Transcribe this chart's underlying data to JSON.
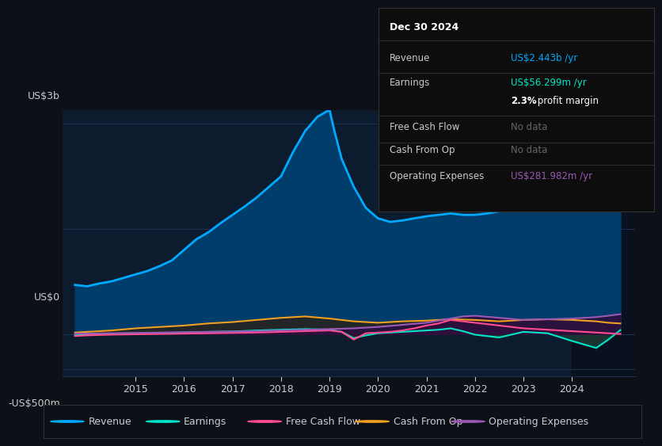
{
  "bg_color": "#0d1117",
  "plot_bg_color": "#0d1b2e",
  "grid_color": "#1e3050",
  "text_color": "#c8ccd0",
  "title_color": "#ffffff",
  "ylabel_3b": "US$3b",
  "ylabel_0": "US$0",
  "ylabel_neg500m": "-US$500m",
  "xlim": [
    2013.5,
    2025.3
  ],
  "ylim": [
    -600,
    3200
  ],
  "x_ticks": [
    2015,
    2016,
    2017,
    2018,
    2019,
    2020,
    2021,
    2022,
    2023,
    2024
  ],
  "revenue_color": "#00aaff",
  "revenue_fill": "#003d6b",
  "earnings_color": "#00e5c8",
  "cashflow_color": "#ff4d8f",
  "cashfromop_color": "#f0a020",
  "opex_color": "#9b59b6",
  "revenue_x": [
    2013.75,
    2014.0,
    2014.25,
    2014.5,
    2014.75,
    2015.0,
    2015.25,
    2015.5,
    2015.75,
    2016.0,
    2016.25,
    2016.5,
    2016.75,
    2017.0,
    2017.25,
    2017.5,
    2017.75,
    2018.0,
    2018.25,
    2018.5,
    2018.75,
    2019.0,
    2019.1,
    2019.25,
    2019.5,
    2019.75,
    2020.0,
    2020.25,
    2020.5,
    2020.75,
    2021.0,
    2021.25,
    2021.5,
    2021.75,
    2022.0,
    2022.25,
    2022.5,
    2022.75,
    2023.0,
    2023.25,
    2023.5,
    2023.75,
    2024.0,
    2024.25,
    2024.5,
    2024.75,
    2025.0
  ],
  "revenue_y": [
    700,
    680,
    720,
    750,
    800,
    850,
    900,
    970,
    1050,
    1200,
    1350,
    1450,
    1580,
    1700,
    1820,
    1950,
    2100,
    2250,
    2600,
    2900,
    3100,
    3200,
    2900,
    2500,
    2100,
    1800,
    1650,
    1600,
    1620,
    1650,
    1680,
    1700,
    1720,
    1700,
    1700,
    1720,
    1750,
    1780,
    1900,
    2100,
    2200,
    2100,
    2050,
    2150,
    2300,
    2450,
    2443
  ],
  "earnings_x": [
    2013.75,
    2014.0,
    2014.5,
    2015.0,
    2015.5,
    2016.0,
    2016.5,
    2017.0,
    2017.5,
    2018.0,
    2018.5,
    2019.0,
    2019.25,
    2019.5,
    2019.75,
    2020.0,
    2020.5,
    2021.0,
    2021.25,
    2021.5,
    2021.75,
    2022.0,
    2022.5,
    2023.0,
    2023.5,
    2024.0,
    2024.5,
    2024.75,
    2025.0
  ],
  "earnings_y": [
    -20,
    -10,
    5,
    10,
    15,
    20,
    30,
    35,
    50,
    60,
    70,
    60,
    30,
    -60,
    -20,
    10,
    30,
    50,
    60,
    80,
    40,
    -10,
    -50,
    30,
    10,
    -100,
    -200,
    -80,
    56
  ],
  "cashflow_x": [
    2013.75,
    2014.0,
    2014.5,
    2015.0,
    2015.5,
    2016.0,
    2016.5,
    2017.0,
    2017.5,
    2018.0,
    2018.5,
    2019.0,
    2019.25,
    2019.5,
    2019.75,
    2020.0,
    2020.25,
    2020.5,
    2020.75,
    2021.0,
    2021.25,
    2021.5,
    2021.75,
    2022.0,
    2022.25,
    2022.5,
    2022.75,
    2023.0,
    2023.5,
    2024.0,
    2024.5,
    2024.75,
    2025.0
  ],
  "cashflow_y": [
    -30,
    -20,
    -10,
    -5,
    0,
    5,
    10,
    15,
    20,
    30,
    40,
    50,
    30,
    -80,
    10,
    20,
    30,
    50,
    80,
    120,
    150,
    200,
    180,
    160,
    140,
    120,
    100,
    80,
    60,
    40,
    20,
    10,
    0
  ],
  "cashfromop_x": [
    2013.75,
    2014.0,
    2014.5,
    2015.0,
    2015.5,
    2016.0,
    2016.5,
    2017.0,
    2017.5,
    2018.0,
    2018.5,
    2019.0,
    2019.5,
    2020.0,
    2020.5,
    2021.0,
    2021.5,
    2022.0,
    2022.5,
    2023.0,
    2023.5,
    2024.0,
    2024.5,
    2024.75,
    2025.0
  ],
  "cashfromop_y": [
    20,
    30,
    50,
    80,
    100,
    120,
    150,
    170,
    200,
    230,
    250,
    220,
    180,
    160,
    180,
    190,
    210,
    200,
    180,
    200,
    210,
    200,
    180,
    160,
    150
  ],
  "opex_x": [
    2013.75,
    2014.5,
    2015.0,
    2015.5,
    2016.0,
    2016.5,
    2017.0,
    2017.5,
    2018.0,
    2018.5,
    2019.0,
    2019.5,
    2020.0,
    2020.5,
    2021.0,
    2021.25,
    2021.5,
    2021.75,
    2022.0,
    2022.5,
    2023.0,
    2023.5,
    2024.0,
    2024.5,
    2024.75,
    2025.0
  ],
  "opex_y": [
    5,
    10,
    15,
    20,
    25,
    30,
    35,
    40,
    50,
    60,
    70,
    80,
    100,
    130,
    160,
    190,
    220,
    250,
    260,
    230,
    200,
    210,
    220,
    240,
    260,
    282
  ],
  "info_box": {
    "date": "Dec 30 2024",
    "rows": [
      {
        "label": "Revenue",
        "value": "US$2.443b /yr",
        "value_color": "#00aaff",
        "label_color": "#c8ccd0"
      },
      {
        "label": "Earnings",
        "value": "US$56.299m /yr",
        "value_color": "#00e5c8",
        "label_color": "#c8ccd0"
      },
      {
        "label": "",
        "value": "2.3% profit margin",
        "value_color": "#ffffff",
        "label_color": "#c8ccd0",
        "bold_prefix": "2.3%"
      },
      {
        "label": "Free Cash Flow",
        "value": "No data",
        "value_color": "#666666",
        "label_color": "#c8ccd0"
      },
      {
        "label": "Cash From Op",
        "value": "No data",
        "value_color": "#666666",
        "label_color": "#c8ccd0"
      },
      {
        "label": "Operating Expenses",
        "value": "US$281.982m /yr",
        "value_color": "#9b59b6",
        "label_color": "#c8ccd0"
      }
    ]
  },
  "legend": [
    {
      "label": "Revenue",
      "color": "#00aaff"
    },
    {
      "label": "Earnings",
      "color": "#00e5c8"
    },
    {
      "label": "Free Cash Flow",
      "color": "#ff4d8f"
    },
    {
      "label": "Cash From Op",
      "color": "#f0a020"
    },
    {
      "label": "Operating Expenses",
      "color": "#9b59b6"
    }
  ]
}
